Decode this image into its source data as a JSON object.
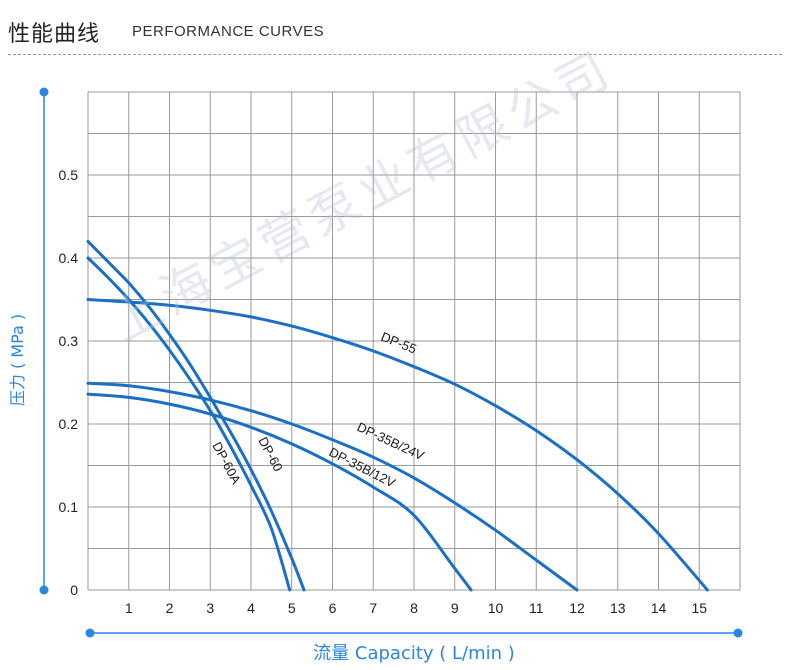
{
  "header": {
    "title_cn": "性能曲线",
    "title_en": "PERFORMANCE CURVES"
  },
  "watermark": "上海宝营泵业有限公司",
  "colors": {
    "curve": "#1b6fc6",
    "axis_accent": "#2a86e0",
    "grid": "#9a9a9a",
    "text": "#222222"
  },
  "chart_data": {
    "type": "line",
    "title": "性能曲线 PERFORMANCE CURVES",
    "xlabel": "流量 Capacity ( L/min )",
    "ylabel": "压力 ( MPa )",
    "xlim": [
      0,
      16
    ],
    "ylim": [
      0,
      0.6
    ],
    "x_ticks": [
      1,
      2,
      3,
      4,
      5,
      6,
      7,
      8,
      9,
      10,
      11,
      12,
      13,
      14,
      15
    ],
    "y_ticks": [
      0,
      0.1,
      0.2,
      0.3,
      0.4,
      0.5
    ],
    "y_tick_labels": [
      "0",
      "0.1",
      "0.2",
      "0.3",
      "0.4",
      "0.5"
    ],
    "grid": true,
    "series": [
      {
        "name": "DP-55",
        "x": [
          0,
          1,
          2,
          3,
          4,
          5,
          6,
          7,
          8,
          9,
          10,
          11,
          12,
          13,
          14,
          15.2
        ],
        "y": [
          0.35,
          0.347,
          0.343,
          0.337,
          0.329,
          0.318,
          0.304,
          0.288,
          0.269,
          0.248,
          0.222,
          0.192,
          0.157,
          0.116,
          0.068,
          0
        ]
      },
      {
        "name": "DP-35B/24V",
        "x": [
          0,
          1,
          2,
          3,
          4,
          5,
          6,
          7,
          8,
          9,
          10,
          11,
          12
        ],
        "y": [
          0.249,
          0.246,
          0.239,
          0.229,
          0.216,
          0.2,
          0.181,
          0.16,
          0.135,
          0.105,
          0.072,
          0.036,
          0
        ]
      },
      {
        "name": "DP-35B/12V",
        "x": [
          0,
          1,
          2,
          3,
          4,
          5,
          6,
          7,
          8,
          9,
          9.4
        ],
        "y": [
          0.236,
          0.232,
          0.224,
          0.212,
          0.196,
          0.176,
          0.152,
          0.124,
          0.09,
          0.026,
          0
        ]
      },
      {
        "name": "DP-60",
        "x": [
          0,
          0.5,
          1,
          1.5,
          2,
          2.5,
          3,
          3.5,
          4,
          4.5,
          5,
          5.3
        ],
        "y": [
          0.42,
          0.395,
          0.37,
          0.341,
          0.308,
          0.272,
          0.232,
          0.19,
          0.145,
          0.095,
          0.038,
          0
        ]
      },
      {
        "name": "DP-60A",
        "x": [
          0,
          0.5,
          1,
          1.5,
          2,
          2.5,
          3,
          3.5,
          4,
          4.5,
          4.95
        ],
        "y": [
          0.4,
          0.376,
          0.35,
          0.321,
          0.289,
          0.254,
          0.216,
          0.173,
          0.126,
          0.074,
          0
        ]
      }
    ]
  }
}
